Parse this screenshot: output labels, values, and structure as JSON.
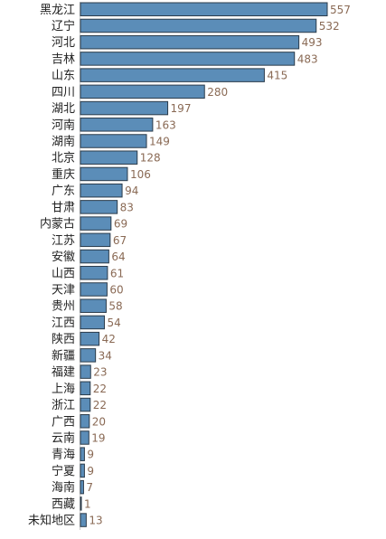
{
  "chart_data": {
    "type": "bar",
    "orientation": "horizontal",
    "title": "",
    "xlabel": "",
    "ylabel": "",
    "grid": false,
    "xlim": [
      0,
      557
    ],
    "categories": [
      "黑龙江",
      "辽宁",
      "河北",
      "吉林",
      "山东",
      "四川",
      "湖北",
      "河南",
      "湖南",
      "北京",
      "重庆",
      "广东",
      "甘肃",
      "内蒙古",
      "江苏",
      "安徽",
      "山西",
      "天津",
      "贵州",
      "江西",
      "陕西",
      "新疆",
      "福建",
      "上海",
      "浙江",
      "广西",
      "云南",
      "青海",
      "宁夏",
      "海南",
      "西藏",
      "未知地区"
    ],
    "values": [
      557,
      532,
      493,
      483,
      415,
      280,
      197,
      163,
      149,
      128,
      106,
      94,
      83,
      69,
      67,
      64,
      61,
      60,
      58,
      54,
      42,
      34,
      23,
      22,
      22,
      20,
      19,
      9,
      9,
      7,
      1,
      13
    ],
    "colors": {
      "bar_fill": "#5b8db8",
      "bar_stroke": "#2b3b4a",
      "value_text": "#8a6a55",
      "label_text": "#222222"
    }
  }
}
